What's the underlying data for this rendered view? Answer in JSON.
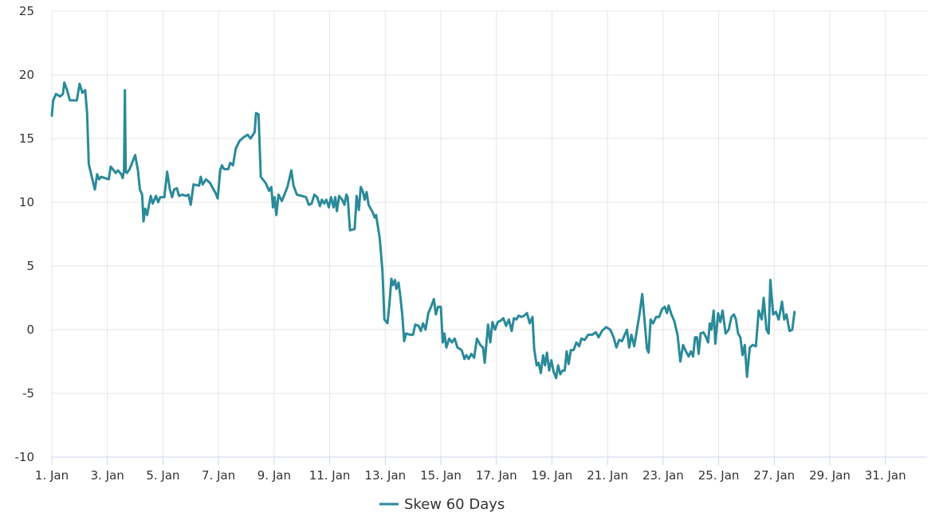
{
  "chart_data": {
    "type": "line",
    "title": "",
    "xlabel": "",
    "ylabel": "",
    "ylim": [
      -10,
      25
    ],
    "yticks": [
      -10,
      -5,
      0,
      5,
      10,
      15,
      20,
      25
    ],
    "xlim": [
      1,
      32.5
    ],
    "xticks": [
      {
        "day": 1,
        "label": "1. Jan"
      },
      {
        "day": 3,
        "label": "3. Jan"
      },
      {
        "day": 5,
        "label": "5. Jan"
      },
      {
        "day": 7,
        "label": "7. Jan"
      },
      {
        "day": 9,
        "label": "9. Jan"
      },
      {
        "day": 11,
        "label": "11. Jan"
      },
      {
        "day": 13,
        "label": "13. Jan"
      },
      {
        "day": 15,
        "label": "15. Jan"
      },
      {
        "day": 17,
        "label": "17. Jan"
      },
      {
        "day": 19,
        "label": "19. Jan"
      },
      {
        "day": 21,
        "label": "21. Jan"
      },
      {
        "day": 23,
        "label": "23. Jan"
      },
      {
        "day": 25,
        "label": "25. Jan"
      },
      {
        "day": 27,
        "label": "27. Jan"
      },
      {
        "day": 29,
        "label": "29. Jan"
      },
      {
        "day": 31,
        "label": "31. Jan"
      }
    ],
    "grid": true,
    "legend_position": "bottom-center",
    "series": [
      {
        "name": "Skew 60 Days",
        "color": "#2a8a99",
        "points": [
          [
            1.0,
            16.8
          ],
          [
            1.05,
            18.0
          ],
          [
            1.15,
            18.5
          ],
          [
            1.3,
            18.3
          ],
          [
            1.4,
            18.5
          ],
          [
            1.45,
            19.4
          ],
          [
            1.55,
            18.8
          ],
          [
            1.65,
            18.0
          ],
          [
            1.9,
            18.0
          ],
          [
            2.0,
            19.3
          ],
          [
            2.1,
            18.6
          ],
          [
            2.2,
            18.8
          ],
          [
            2.27,
            17.0
          ],
          [
            2.33,
            13.0
          ],
          [
            2.45,
            11.9
          ],
          [
            2.55,
            11.0
          ],
          [
            2.63,
            12.2
          ],
          [
            2.7,
            11.8
          ],
          [
            2.78,
            12.0
          ],
          [
            3.05,
            11.8
          ],
          [
            3.12,
            12.8
          ],
          [
            3.3,
            12.3
          ],
          [
            3.38,
            12.5
          ],
          [
            3.5,
            12.2
          ],
          [
            3.55,
            11.9
          ],
          [
            3.6,
            12.5
          ],
          [
            3.63,
            18.8
          ],
          [
            3.66,
            12.4
          ],
          [
            3.7,
            12.3
          ],
          [
            3.8,
            12.6
          ],
          [
            4.0,
            13.7
          ],
          [
            4.1,
            12.5
          ],
          [
            4.17,
            11.0
          ],
          [
            4.25,
            10.6
          ],
          [
            4.3,
            8.5
          ],
          [
            4.36,
            9.5
          ],
          [
            4.43,
            9.0
          ],
          [
            4.56,
            10.5
          ],
          [
            4.63,
            9.9
          ],
          [
            4.75,
            10.5
          ],
          [
            4.83,
            10.0
          ],
          [
            4.9,
            10.4
          ],
          [
            5.05,
            10.4
          ],
          [
            5.15,
            12.4
          ],
          [
            5.25,
            11.0
          ],
          [
            5.33,
            10.4
          ],
          [
            5.4,
            11.0
          ],
          [
            5.5,
            11.1
          ],
          [
            5.58,
            10.5
          ],
          [
            5.7,
            10.6
          ],
          [
            5.82,
            10.5
          ],
          [
            5.92,
            10.6
          ],
          [
            6.0,
            9.8
          ],
          [
            6.1,
            11.4
          ],
          [
            6.3,
            11.3
          ],
          [
            6.36,
            12.0
          ],
          [
            6.43,
            11.4
          ],
          [
            6.55,
            11.8
          ],
          [
            6.7,
            11.5
          ],
          [
            6.82,
            11.0
          ],
          [
            6.9,
            10.7
          ],
          [
            6.97,
            10.3
          ],
          [
            7.06,
            12.5
          ],
          [
            7.12,
            12.9
          ],
          [
            7.2,
            12.6
          ],
          [
            7.35,
            12.6
          ],
          [
            7.42,
            13.1
          ],
          [
            7.52,
            12.9
          ],
          [
            7.62,
            14.2
          ],
          [
            7.75,
            14.8
          ],
          [
            7.9,
            15.1
          ],
          [
            8.05,
            15.3
          ],
          [
            8.15,
            15.0
          ],
          [
            8.3,
            15.5
          ],
          [
            8.35,
            17.0
          ],
          [
            8.44,
            16.9
          ],
          [
            8.52,
            12.0
          ],
          [
            8.7,
            11.5
          ],
          [
            8.82,
            10.9
          ],
          [
            8.9,
            11.2
          ],
          [
            8.96,
            9.6
          ],
          [
            9.02,
            10.4
          ],
          [
            9.08,
            9.0
          ],
          [
            9.16,
            10.6
          ],
          [
            9.28,
            10.1
          ],
          [
            9.48,
            11.2
          ],
          [
            9.62,
            12.5
          ],
          [
            9.7,
            11.3
          ],
          [
            9.82,
            10.6
          ],
          [
            10.0,
            10.5
          ],
          [
            10.15,
            10.4
          ],
          [
            10.25,
            9.8
          ],
          [
            10.35,
            9.9
          ],
          [
            10.45,
            10.6
          ],
          [
            10.55,
            10.4
          ],
          [
            10.65,
            9.7
          ],
          [
            10.72,
            10.2
          ],
          [
            10.8,
            9.9
          ],
          [
            10.88,
            10.2
          ],
          [
            10.97,
            9.6
          ],
          [
            11.05,
            10.4
          ],
          [
            11.14,
            9.6
          ],
          [
            11.2,
            10.4
          ],
          [
            11.26,
            9.3
          ],
          [
            11.34,
            10.5
          ],
          [
            11.45,
            10.2
          ],
          [
            11.53,
            9.8
          ],
          [
            11.6,
            10.6
          ],
          [
            11.65,
            10.4
          ],
          [
            11.73,
            7.8
          ],
          [
            11.9,
            7.9
          ],
          [
            11.97,
            10.5
          ],
          [
            12.05,
            9.4
          ],
          [
            12.12,
            11.2
          ],
          [
            12.2,
            10.8
          ],
          [
            12.26,
            10.2
          ],
          [
            12.33,
            10.8
          ],
          [
            12.4,
            9.8
          ],
          [
            12.55,
            9.2
          ],
          [
            12.62,
            8.8
          ],
          [
            12.67,
            9.0
          ],
          [
            12.8,
            7.2
          ],
          [
            12.9,
            4.6
          ],
          [
            12.97,
            0.8
          ],
          [
            13.08,
            0.5
          ],
          [
            13.15,
            2.0
          ],
          [
            13.22,
            4.0
          ],
          [
            13.28,
            3.5
          ],
          [
            13.35,
            3.9
          ],
          [
            13.4,
            3.2
          ],
          [
            13.48,
            3.7
          ],
          [
            13.55,
            2.5
          ],
          [
            13.62,
            1.0
          ],
          [
            13.68,
            -0.9
          ],
          [
            13.75,
            -0.3
          ],
          [
            13.9,
            -0.4
          ],
          [
            14.0,
            -0.4
          ],
          [
            14.08,
            0.4
          ],
          [
            14.2,
            0.3
          ],
          [
            14.28,
            -0.1
          ],
          [
            14.36,
            0.5
          ],
          [
            14.45,
            0.0
          ],
          [
            14.55,
            1.3
          ],
          [
            14.65,
            1.8
          ],
          [
            14.75,
            2.4
          ],
          [
            14.82,
            1.2
          ],
          [
            14.9,
            1.8
          ],
          [
            15.0,
            1.8
          ],
          [
            15.07,
            -1.0
          ],
          [
            15.13,
            -0.3
          ],
          [
            15.2,
            -1.4
          ],
          [
            15.3,
            -0.7
          ],
          [
            15.4,
            -1.0
          ],
          [
            15.5,
            -0.7
          ],
          [
            15.6,
            -1.4
          ],
          [
            15.75,
            -1.6
          ],
          [
            15.85,
            -2.3
          ],
          [
            15.92,
            -2.0
          ],
          [
            16.0,
            -2.3
          ],
          [
            16.1,
            -1.9
          ],
          [
            16.2,
            -2.2
          ],
          [
            16.3,
            -0.7
          ],
          [
            16.42,
            -1.2
          ],
          [
            16.52,
            -1.4
          ],
          [
            16.58,
            -2.6
          ],
          [
            16.7,
            0.4
          ],
          [
            16.78,
            -1.0
          ],
          [
            16.86,
            0.6
          ],
          [
            16.95,
            0.0
          ],
          [
            17.05,
            0.6
          ],
          [
            17.15,
            0.7
          ],
          [
            17.25,
            0.9
          ],
          [
            17.35,
            0.3
          ],
          [
            17.45,
            0.8
          ],
          [
            17.55,
            -0.1
          ],
          [
            17.63,
            0.9
          ],
          [
            17.72,
            0.8
          ],
          [
            17.8,
            1.1
          ],
          [
            17.9,
            1.0
          ],
          [
            18.0,
            1.1
          ],
          [
            18.1,
            1.3
          ],
          [
            18.2,
            0.5
          ],
          [
            18.3,
            1.0
          ],
          [
            18.36,
            -1.5
          ],
          [
            18.45,
            -2.8
          ],
          [
            18.52,
            -2.6
          ],
          [
            18.6,
            -3.4
          ],
          [
            18.68,
            -2.0
          ],
          [
            18.75,
            -2.8
          ],
          [
            18.82,
            -1.8
          ],
          [
            18.9,
            -3.2
          ],
          [
            18.98,
            -2.4
          ],
          [
            19.06,
            -3.3
          ],
          [
            19.15,
            -3.8
          ],
          [
            19.22,
            -2.8
          ],
          [
            19.3,
            -3.5
          ],
          [
            19.38,
            -3.2
          ],
          [
            19.46,
            -3.2
          ],
          [
            19.53,
            -1.7
          ],
          [
            19.6,
            -2.7
          ],
          [
            19.68,
            -1.6
          ],
          [
            19.78,
            -1.6
          ],
          [
            19.88,
            -1.0
          ],
          [
            19.98,
            -1.3
          ],
          [
            20.06,
            -0.7
          ],
          [
            20.18,
            -0.8
          ],
          [
            20.3,
            -0.4
          ],
          [
            20.45,
            -0.4
          ],
          [
            20.58,
            -0.2
          ],
          [
            20.68,
            -0.6
          ],
          [
            20.8,
            -0.1
          ],
          [
            20.95,
            0.2
          ],
          [
            21.1,
            0.0
          ],
          [
            21.22,
            -0.6
          ],
          [
            21.32,
            -1.4
          ],
          [
            21.42,
            -0.8
          ],
          [
            21.52,
            -0.9
          ],
          [
            21.62,
            -0.4
          ],
          [
            21.7,
            0.0
          ],
          [
            21.78,
            -1.4
          ],
          [
            21.86,
            -0.4
          ],
          [
            21.96,
            -1.3
          ],
          [
            22.06,
            0.0
          ],
          [
            22.15,
            1.2
          ],
          [
            22.25,
            2.8
          ],
          [
            22.33,
            0.8
          ],
          [
            22.42,
            -1.5
          ],
          [
            22.48,
            -1.8
          ],
          [
            22.55,
            0.8
          ],
          [
            22.64,
            0.5
          ],
          [
            22.75,
            1.0
          ],
          [
            22.86,
            1.0
          ],
          [
            22.96,
            1.6
          ],
          [
            23.06,
            1.8
          ],
          [
            23.14,
            1.3
          ],
          [
            23.2,
            1.9
          ],
          [
            23.3,
            1.2
          ],
          [
            23.4,
            0.7
          ],
          [
            23.52,
            -0.4
          ],
          [
            23.62,
            -2.5
          ],
          [
            23.72,
            -1.2
          ],
          [
            23.82,
            -1.7
          ],
          [
            23.92,
            -2.1
          ],
          [
            24.0,
            -1.7
          ],
          [
            24.08,
            -2.1
          ],
          [
            24.15,
            -0.6
          ],
          [
            24.22,
            -0.6
          ],
          [
            24.28,
            -1.9
          ],
          [
            24.35,
            -0.3
          ],
          [
            24.45,
            -0.2
          ],
          [
            24.55,
            -0.6
          ],
          [
            24.62,
            -1.0
          ],
          [
            24.68,
            0.5
          ],
          [
            24.74,
            0.0
          ],
          [
            24.82,
            1.5
          ],
          [
            24.88,
            -1.1
          ],
          [
            24.98,
            1.3
          ],
          [
            25.06,
            0.6
          ],
          [
            25.14,
            1.5
          ],
          [
            25.25,
            -0.3
          ],
          [
            25.36,
            0.0
          ],
          [
            25.46,
            1.0
          ],
          [
            25.55,
            1.2
          ],
          [
            25.62,
            0.8
          ],
          [
            25.7,
            -0.3
          ],
          [
            25.78,
            -0.6
          ],
          [
            25.86,
            -2.0
          ],
          [
            25.94,
            -1.2
          ],
          [
            26.02,
            -3.7
          ],
          [
            26.12,
            -1.4
          ],
          [
            26.22,
            -1.2
          ],
          [
            26.34,
            -1.3
          ],
          [
            26.44,
            1.5
          ],
          [
            26.55,
            0.8
          ],
          [
            26.62,
            2.5
          ],
          [
            26.72,
            0.0
          ],
          [
            26.8,
            -0.3
          ],
          [
            26.86,
            3.9
          ],
          [
            26.96,
            1.2
          ],
          [
            27.06,
            1.4
          ],
          [
            27.16,
            0.8
          ],
          [
            27.28,
            2.2
          ],
          [
            27.36,
            0.8
          ],
          [
            27.44,
            1.2
          ],
          [
            27.55,
            -0.1
          ],
          [
            27.65,
            0.0
          ],
          [
            27.73,
            1.4
          ]
        ]
      }
    ]
  },
  "legend": {
    "items": [
      {
        "label": "Skew 60 Days",
        "color": "#2a8a99"
      }
    ]
  }
}
